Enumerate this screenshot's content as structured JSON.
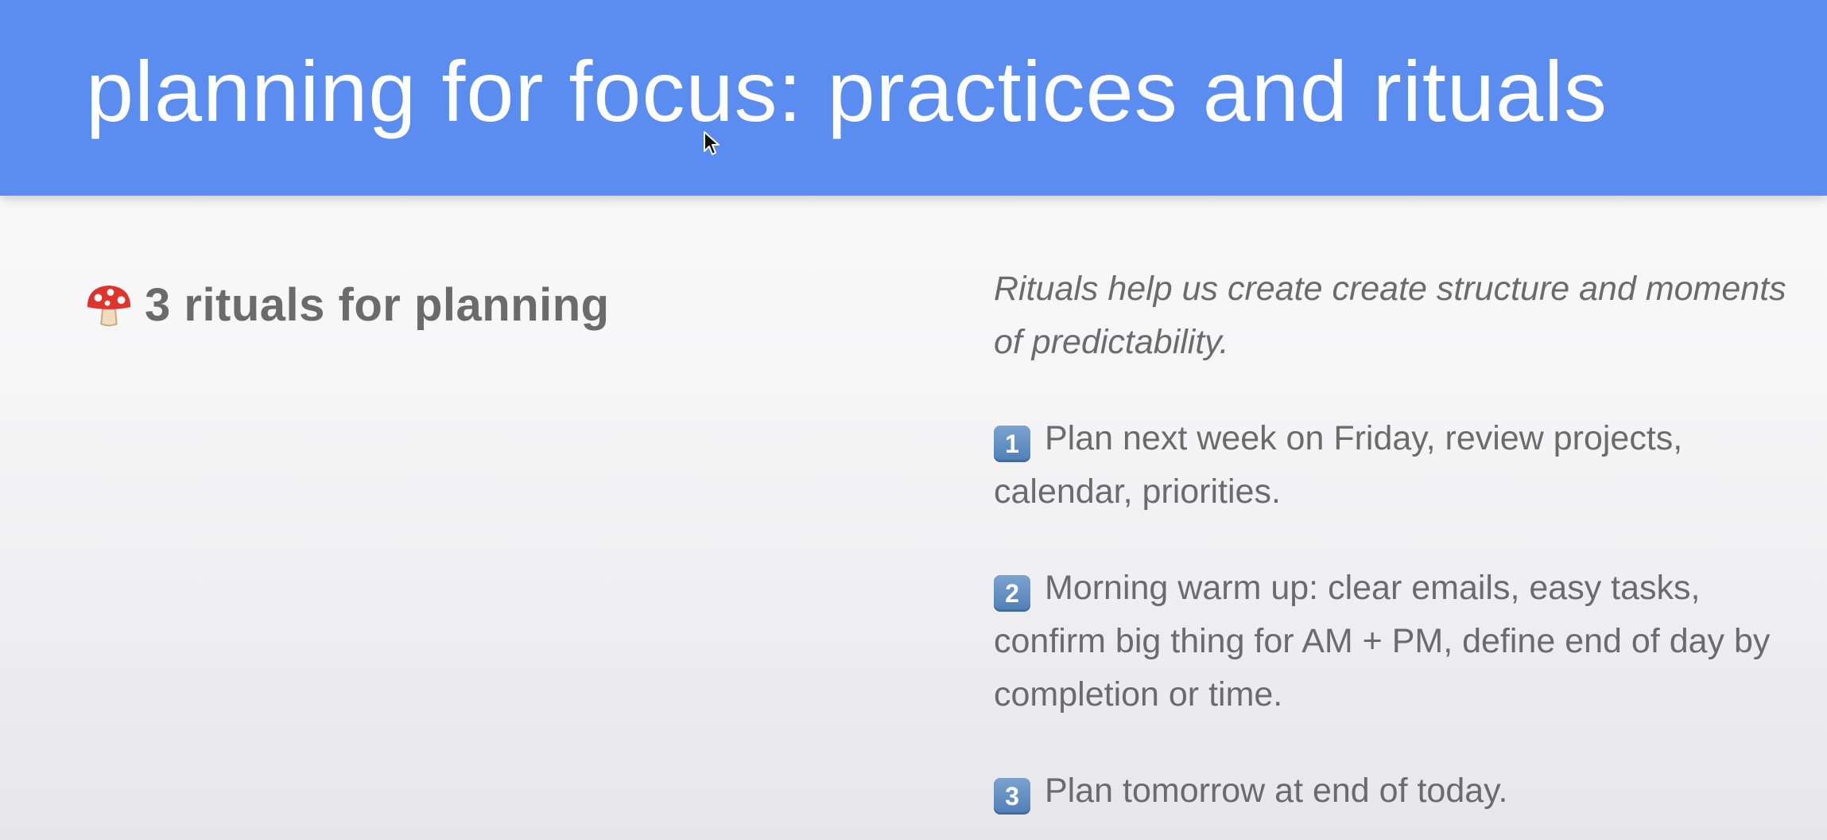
{
  "slide": {
    "title": "planning for focus: practices and rituals",
    "header_color": "#5a8def"
  },
  "left": {
    "icon": "mushroom-icon",
    "heading": "3 rituals for planning"
  },
  "right": {
    "intro": "Rituals help us create create structure and moments of predictability.",
    "rituals": [
      {
        "number": "1",
        "text": "Plan next week on Friday, review projects, calendar, priorities."
      },
      {
        "number": "2",
        "text": "Morning warm up: clear emails, easy tasks, confirm big thing for AM + PM, define end of day by completion or time."
      },
      {
        "number": "3",
        "text": "Plan tomorrow at end of today."
      }
    ]
  },
  "cursor": {
    "icon": "mouse-pointer-icon"
  }
}
